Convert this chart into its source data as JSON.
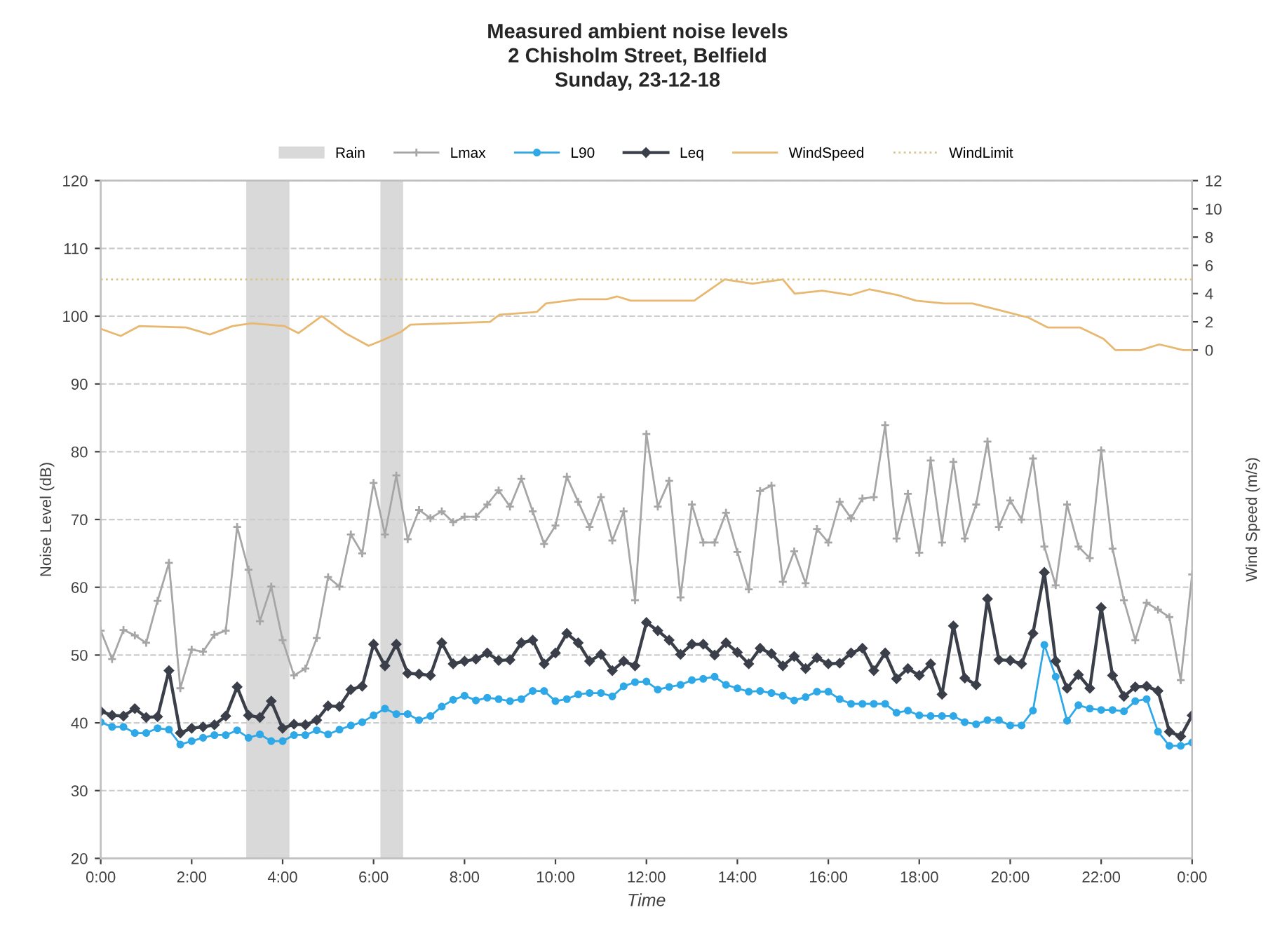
{
  "chart_data": {
    "type": "line",
    "title": "Measured ambient noise levels\n2 Chisholm Street, Belfield\nSunday, 23-12-18",
    "xlabel": "Time",
    "ylabel": "Noise Level (dB)",
    "y2label": "Wind Speed (m/s)",
    "xlim": [
      0,
      24
    ],
    "x": [
      0,
      0.25,
      0.5,
      0.75,
      1,
      1.25,
      1.5,
      1.75,
      2,
      2.25,
      2.5,
      2.75,
      3,
      3.25,
      3.5,
      3.75,
      4,
      4.25,
      4.5,
      4.75,
      5,
      5.25,
      5.5,
      5.75,
      6,
      6.25,
      6.5,
      6.75,
      7,
      7.25,
      7.5,
      7.75,
      8,
      8.25,
      8.5,
      8.75,
      9,
      9.25,
      9.5,
      9.75,
      10,
      10.25,
      10.5,
      10.75,
      11,
      11.25,
      11.5,
      11.75,
      12,
      12.25,
      12.5,
      12.75,
      13,
      13.25,
      13.5,
      13.75,
      14,
      14.25,
      14.5,
      14.75,
      15,
      15.25,
      15.5,
      15.75,
      16,
      16.25,
      16.5,
      16.75,
      17,
      17.25,
      17.5,
      17.75,
      18,
      18.25,
      18.5,
      18.75,
      19,
      19.25,
      19.5,
      19.75,
      20,
      20.25,
      20.5,
      20.75,
      21,
      21.25,
      21.5,
      21.75,
      22,
      22.25,
      22.5,
      22.75,
      23,
      23.25,
      23.5,
      23.75,
      24
    ],
    "xticks": [
      {
        "value": 0,
        "label": "0:00"
      },
      {
        "value": 2,
        "label": "2:00"
      },
      {
        "value": 4,
        "label": "4:00"
      },
      {
        "value": 6,
        "label": "6:00"
      },
      {
        "value": 8,
        "label": "8:00"
      },
      {
        "value": 10,
        "label": "10:00"
      },
      {
        "value": 12,
        "label": "12:00"
      },
      {
        "value": 14,
        "label": "14:00"
      },
      {
        "value": 16,
        "label": "16:00"
      },
      {
        "value": 18,
        "label": "18:00"
      },
      {
        "value": 20,
        "label": "20:00"
      },
      {
        "value": 22,
        "label": "22:00"
      },
      {
        "value": 24,
        "label": "0:00"
      }
    ],
    "ylim": [
      20,
      120
    ],
    "yticks": [
      20,
      30,
      40,
      50,
      60,
      70,
      80,
      90,
      100,
      110,
      120
    ],
    "y2lim": [
      -36,
      12
    ],
    "y2ticks": [
      0,
      2,
      4,
      6,
      8,
      10,
      12
    ],
    "grid": "y",
    "legend": "top",
    "bands": [
      {
        "axis": "x",
        "from": 3.2,
        "to": 4.15,
        "label": "Rain",
        "color": "#d9d9d9"
      },
      {
        "axis": "x",
        "from": 6.15,
        "to": 6.65,
        "color": "#d9d9d9"
      }
    ],
    "series": [
      {
        "name": "Lmax",
        "color": "#a6a6a6",
        "marker": "cross",
        "values": [
          53.6,
          49.4,
          53.7,
          52.9,
          51.8,
          58,
          63.6,
          45.1,
          50.8,
          50.5,
          53,
          53.6,
          68.9,
          62.6,
          55,
          60.1,
          52.2,
          47,
          48,
          52.5,
          61.5,
          60.1,
          67.8,
          65,
          75.4,
          67.8,
          76.5,
          67.1,
          71.4,
          70.2,
          71.2,
          69.6,
          70.4,
          70.4,
          72.2,
          74.3,
          71.9,
          76,
          71.2,
          66.4,
          69.1,
          76.3,
          72.6,
          68.9,
          73.3,
          66.9,
          71.2,
          58.1,
          82.6,
          71.9,
          75.7,
          58.5,
          72.2,
          66.6,
          66.6,
          71,
          65.2,
          59.7,
          74.2,
          75,
          60.8,
          65.3,
          60.6,
          68.6,
          66.6,
          72.6,
          70.2,
          73.1,
          73.3,
          83.9,
          67.2,
          73.8,
          65.1,
          78.7,
          66.6,
          78.5,
          67.2,
          72.2,
          81.5,
          68.9,
          72.8,
          70,
          79,
          66,
          60.3,
          72.2,
          66,
          64.3,
          80.2,
          65.7,
          58.1,
          52.2,
          57.7,
          56.7,
          55.6,
          46.3,
          61.9
        ]
      },
      {
        "name": "L90",
        "color": "#2ea8e6",
        "marker": "circle",
        "values": [
          40.1,
          39.4,
          39.4,
          38.5,
          38.5,
          39.2,
          39,
          36.8,
          37.3,
          37.8,
          38.2,
          38.2,
          38.9,
          37.8,
          38.3,
          37.3,
          37.3,
          38.2,
          38.2,
          38.9,
          38.3,
          39,
          39.6,
          40.1,
          41.1,
          42.1,
          41.3,
          41.3,
          40.4,
          41,
          42.4,
          43.4,
          44,
          43.3,
          43.7,
          43.5,
          43.2,
          43.5,
          44.7,
          44.7,
          43.2,
          43.5,
          44.2,
          44.4,
          44.4,
          43.9,
          45.4,
          46,
          46.1,
          44.9,
          45.3,
          45.6,
          46.3,
          46.5,
          46.8,
          45.6,
          45.1,
          44.6,
          44.7,
          44.4,
          44,
          43.3,
          43.8,
          44.6,
          44.6,
          43.5,
          42.8,
          42.8,
          42.8,
          42.8,
          41.5,
          41.8,
          41.1,
          41,
          41,
          41,
          40.1,
          39.8,
          40.4,
          40.4,
          39.6,
          39.6,
          41.8,
          51.5,
          46.8,
          40.3,
          42.6,
          42.1,
          41.9,
          41.9,
          41.7,
          43.2,
          43.5,
          38.7,
          36.6,
          36.6,
          37.1
        ]
      },
      {
        "name": "Leq",
        "color": "#3a3f4a",
        "marker": "diamond",
        "values": [
          41.7,
          41.1,
          41,
          42.1,
          40.8,
          40.9,
          47.7,
          38.5,
          39.2,
          39.4,
          39.7,
          41,
          45.3,
          41.1,
          40.8,
          43.2,
          39.2,
          39.8,
          39.7,
          40.4,
          42.5,
          42.4,
          44.9,
          45.4,
          51.6,
          48.4,
          51.6,
          47.3,
          47.2,
          47,
          51.8,
          48.7,
          49.1,
          49.4,
          50.3,
          49.2,
          49.3,
          51.8,
          52.2,
          48.7,
          50.3,
          53.2,
          51.8,
          49.1,
          50.1,
          47.7,
          49.1,
          48.4,
          54.8,
          53.6,
          52.2,
          50.1,
          51.6,
          51.6,
          50,
          51.8,
          50.4,
          48.7,
          51,
          50.2,
          48.4,
          49.8,
          48,
          49.6,
          48.7,
          48.8,
          50.3,
          51,
          47.7,
          50.3,
          46.5,
          48,
          47,
          48.7,
          44.2,
          54.3,
          46.6,
          45.6,
          58.3,
          49.3,
          49.2,
          48.7,
          53.2,
          62.2,
          49.1,
          45.1,
          47.1,
          45.1,
          57,
          47,
          43.9,
          45.3,
          45.4,
          44.7,
          38.7,
          38,
          41.1
        ]
      },
      {
        "name": "WindSpeed",
        "color": "#e8b870",
        "axis": "y2",
        "marker": "none",
        "x": [
          0,
          0.44,
          0.85,
          1.88,
          2.4,
          2.9,
          3.32,
          4.04,
          4.35,
          4.86,
          5.38,
          5.89,
          6.2,
          6.61,
          6.81,
          8.56,
          8.77,
          9.59,
          9.79,
          10.51,
          11.13,
          11.35,
          11.66,
          13.05,
          13.72,
          14.33,
          15,
          15.26,
          15.87,
          16.49,
          16.9,
          17.52,
          17.93,
          18.55,
          19.17,
          19.79,
          20.4,
          20.82,
          21.53,
          22.05,
          22.31,
          22.87,
          23.28,
          23.8,
          24
        ],
        "values": [
          1.5,
          1,
          1.7,
          1.6,
          1.1,
          1.7,
          1.9,
          1.7,
          1.2,
          2.4,
          1.2,
          0.3,
          0.7,
          1.3,
          1.8,
          2,
          2.5,
          2.7,
          3.3,
          3.6,
          3.6,
          3.8,
          3.5,
          3.5,
          5,
          4.7,
          5,
          4,
          4.2,
          3.9,
          4.3,
          3.9,
          3.5,
          3.3,
          3.3,
          2.8,
          2.3,
          1.6,
          1.6,
          0.8,
          0,
          0,
          0.4,
          0,
          0
        ]
      },
      {
        "name": "WindLimit",
        "color": "#d9c48a",
        "axis": "y2",
        "marker": "none",
        "line_style": "dotted",
        "x": [
          0,
          24
        ],
        "values": [
          5,
          5
        ]
      }
    ]
  }
}
